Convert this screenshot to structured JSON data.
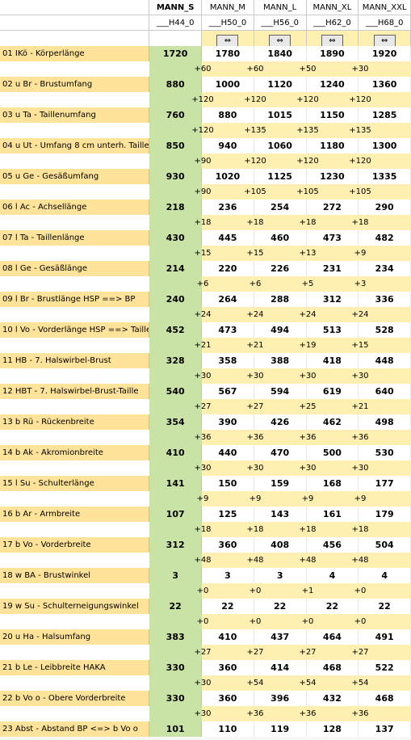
{
  "sizes": [
    {
      "name": "MANN_S",
      "code": "___H44_0"
    },
    {
      "name": "MANN_M",
      "code": "___H50_0"
    },
    {
      "name": "MANN_L",
      "code": "___H56_0"
    },
    {
      "name": "MANN_XL",
      "code": "___H62_0"
    },
    {
      "name": "MANN_XXL",
      "code": "___H68_0"
    }
  ],
  "arrow_glyph": "⇔",
  "measurements": [
    {
      "label": "01  IKö - Körperlänge",
      "values": [
        "1720",
        "1780",
        "1840",
        "1890",
        "1920"
      ],
      "increments": [
        "+60",
        "+60",
        "+50",
        "+30"
      ]
    },
    {
      "label": "02  u Br - Brustumfang",
      "values": [
        "880",
        "1000",
        "1120",
        "1240",
        "1360"
      ],
      "increments": [
        "+120",
        "+120",
        "+120",
        "+120"
      ]
    },
    {
      "label": "03  u Ta - Taillenumfang",
      "values": [
        "760",
        "880",
        "1015",
        "1150",
        "1285"
      ],
      "increments": [
        "+120",
        "+135",
        "+135",
        "+135"
      ]
    },
    {
      "label": "04  u Ut - Umfang 8 cm unterh. Taille",
      "values": [
        "850",
        "940",
        "1060",
        "1180",
        "1300"
      ],
      "increments": [
        "+90",
        "+120",
        "+120",
        "+120"
      ]
    },
    {
      "label": "05  u Ge - Gesäßumfang",
      "values": [
        "930",
        "1020",
        "1125",
        "1230",
        "1335"
      ],
      "increments": [
        "+90",
        "+105",
        "+105",
        "+105"
      ]
    },
    {
      "label": "06  l Ac - Achsellänge",
      "values": [
        "218",
        "236",
        "254",
        "272",
        "290"
      ],
      "increments": [
        "+18",
        "+18",
        "+18",
        "+18"
      ]
    },
    {
      "label": "07  l Ta - Taillenlänge",
      "values": [
        "430",
        "445",
        "460",
        "473",
        "482"
      ],
      "increments": [
        "+15",
        "+15",
        "+13",
        "+9"
      ]
    },
    {
      "label": "08  l Ge - Gesäßlänge",
      "values": [
        "214",
        "220",
        "226",
        "231",
        "234"
      ],
      "increments": [
        "+6",
        "+6",
        "+5",
        "+3"
      ]
    },
    {
      "label": "09  l Br - Brustlänge HSP ==> BP",
      "values": [
        "240",
        "264",
        "288",
        "312",
        "336"
      ],
      "increments": [
        "+24",
        "+24",
        "+24",
        "+24"
      ]
    },
    {
      "label": "10  l Vo - Vorderlänge HSP ==> Taille",
      "values": [
        "452",
        "473",
        "494",
        "513",
        "528"
      ],
      "increments": [
        "+21",
        "+21",
        "+19",
        "+15"
      ]
    },
    {
      "label": "11  HB - 7. Halswirbel-Brust",
      "values": [
        "328",
        "358",
        "388",
        "418",
        "448"
      ],
      "increments": [
        "+30",
        "+30",
        "+30",
        "+30"
      ]
    },
    {
      "label": "12  HBT - 7. Halswirbel-Brust-Taille",
      "values": [
        "540",
        "567",
        "594",
        "619",
        "640"
      ],
      "increments": [
        "+27",
        "+27",
        "+25",
        "+21"
      ]
    },
    {
      "label": "13  b Rü - Rückenbreite",
      "values": [
        "354",
        "390",
        "426",
        "462",
        "498"
      ],
      "increments": [
        "+36",
        "+36",
        "+36",
        "+36"
      ]
    },
    {
      "label": "14  b Ak - Akromionbreite",
      "values": [
        "410",
        "440",
        "470",
        "500",
        "530"
      ],
      "increments": [
        "+30",
        "+30",
        "+30",
        "+30"
      ]
    },
    {
      "label": "15  l Su - Schulterlänge",
      "values": [
        "141",
        "150",
        "159",
        "168",
        "177"
      ],
      "increments": [
        "+9",
        "+9",
        "+9",
        "+9"
      ]
    },
    {
      "label": "16  b Ar - Armbreite",
      "values": [
        "107",
        "125",
        "143",
        "161",
        "179"
      ],
      "increments": [
        "+18",
        "+18",
        "+18",
        "+18"
      ]
    },
    {
      "label": "17  b Vo - Vorderbreite",
      "values": [
        "312",
        "360",
        "408",
        "456",
        "504"
      ],
      "increments": [
        "+48",
        "+48",
        "+48",
        "+48"
      ]
    },
    {
      "label": "18  w BA - Brustwinkel",
      "values": [
        "3",
        "3",
        "3",
        "4",
        "4"
      ],
      "increments": [
        "+0",
        "+0",
        "+1",
        "+0"
      ]
    },
    {
      "label": "19  w Su - Schulterneigungswinkel",
      "values": [
        "22",
        "22",
        "22",
        "22",
        "22"
      ],
      "increments": [
        "+0",
        "+0",
        "+0",
        "+0"
      ]
    },
    {
      "label": "20  u Ha - Halsumfang",
      "values": [
        "383",
        "410",
        "437",
        "464",
        "491"
      ],
      "increments": [
        "+27",
        "+27",
        "+27",
        "+27"
      ]
    },
    {
      "label": "21  b Le - Leibbreite HAKA",
      "values": [
        "330",
        "360",
        "414",
        "468",
        "522"
      ],
      "increments": [
        "+30",
        "+54",
        "+54",
        "+54"
      ]
    },
    {
      "label": "22  b Vo o - Obere Vorderbreite",
      "values": [
        "330",
        "360",
        "396",
        "432",
        "468"
      ],
      "increments": [
        "+30",
        "+36",
        "+36",
        "+36"
      ]
    },
    {
      "label": "23  Abst - Abstand BP <=> b Vo o",
      "values": [
        "101",
        "110",
        "119",
        "128",
        "137"
      ],
      "increments": []
    }
  ]
}
